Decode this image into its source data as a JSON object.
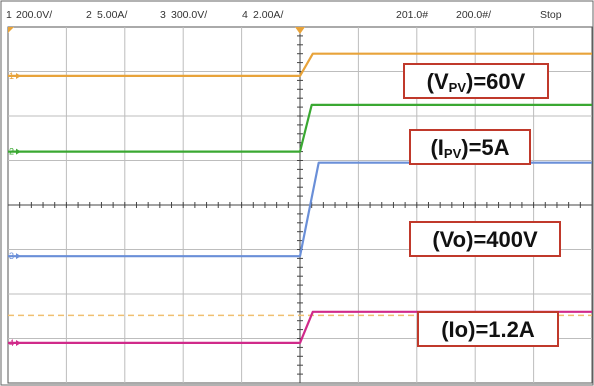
{
  "status_bar": {
    "channels": [
      {
        "number": "1",
        "scale": "200.0V/",
        "color": "#e8a33a"
      },
      {
        "number": "2",
        "scale": "5.00A/",
        "color": "#3aa832"
      },
      {
        "number": "3",
        "scale": "300.0V/",
        "color": "#6a8fd8"
      },
      {
        "number": "4",
        "scale": "2.00A/",
        "color": "#d02a8a"
      }
    ],
    "time_position": "201.0#",
    "time_scale": "200.0#/",
    "run_state": "Stop"
  },
  "chart_data": {
    "type": "line",
    "title": "",
    "xlabel": "",
    "ylabel": "",
    "grid": true,
    "x_divisions": 10,
    "y_divisions": 8,
    "xlim": [
      0,
      10
    ],
    "ylim": [
      0,
      8
    ],
    "x_units": "divisions",
    "y_units": "divisions",
    "trigger_x": 5.0,
    "dashed_level": {
      "y": 1.52,
      "color": "#f0c070"
    },
    "series": [
      {
        "channel": "1",
        "color": "#e8a33a",
        "x": [
          0,
          5.0,
          5.22,
          10
        ],
        "y": [
          6.9,
          6.9,
          7.4,
          7.4
        ],
        "marker_label": "1"
      },
      {
        "channel": "2",
        "color": "#3aa832",
        "x": [
          0,
          5.0,
          5.2,
          10
        ],
        "y": [
          5.2,
          5.2,
          6.25,
          6.25
        ],
        "marker_label": "2"
      },
      {
        "channel": "3",
        "color": "#6a8fd8",
        "x": [
          0,
          5.0,
          5.32,
          10
        ],
        "y": [
          2.85,
          2.85,
          4.95,
          4.95
        ],
        "marker_label": "3"
      },
      {
        "channel": "4",
        "color": "#d02a8a",
        "x": [
          0,
          5.0,
          5.22,
          10
        ],
        "y": [
          0.9,
          0.9,
          1.6,
          1.6
        ],
        "marker_label": "4"
      }
    ],
    "annotations": [
      {
        "prefix": "(V",
        "sub": "PV",
        "suffix": ")=60V"
      },
      {
        "prefix": "(I",
        "sub": "PV",
        "suffix": ")=5A"
      },
      {
        "prefix": "(Vo)=400V",
        "sub": "",
        "suffix": ""
      },
      {
        "prefix": "(Io)=1.2A",
        "sub": "",
        "suffix": ""
      }
    ]
  }
}
